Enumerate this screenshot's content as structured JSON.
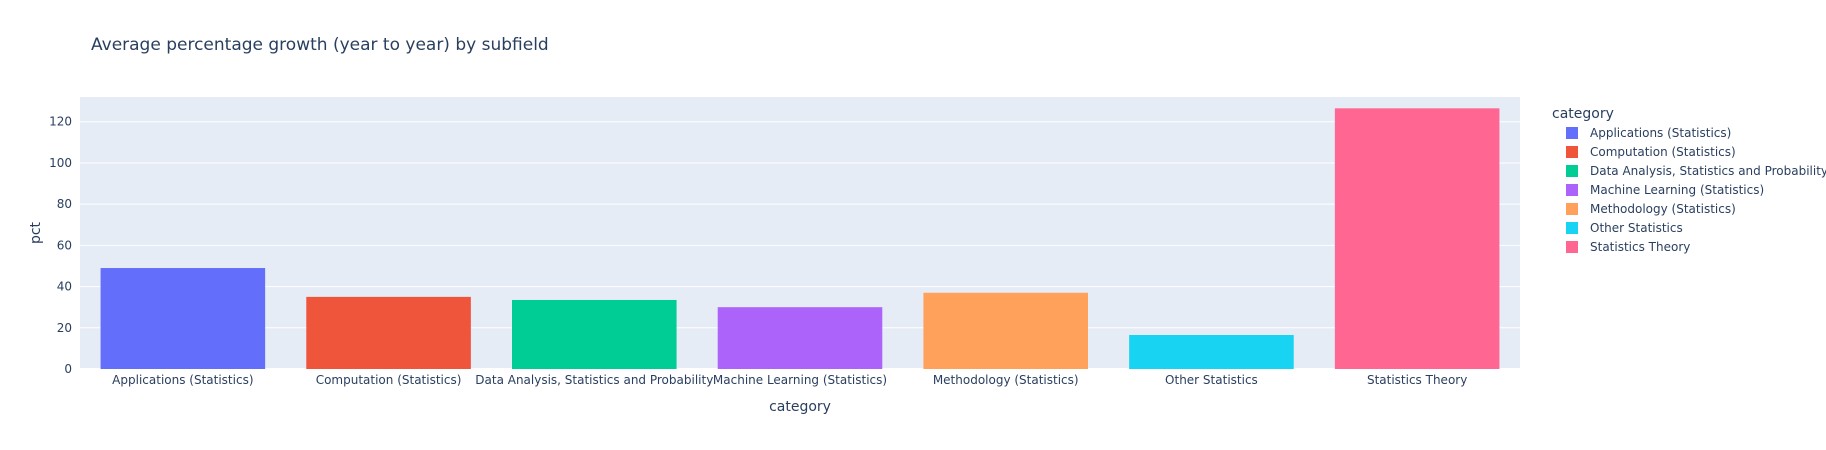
{
  "chart_data": {
    "type": "bar",
    "title": "Average percentage growth (year to year) by subfield",
    "xlabel": "category",
    "ylabel": "pct",
    "ylim": [
      0,
      132
    ],
    "yticks": [
      0,
      20,
      40,
      60,
      80,
      100,
      120
    ],
    "grid": true,
    "legend_title": "category",
    "legend_position": "right",
    "categories": [
      "Applications (Statistics)",
      "Computation (Statistics)",
      "Data Analysis, Statistics and Probability",
      "Machine Learning (Statistics)",
      "Methodology (Statistics)",
      "Other Statistics",
      "Statistics Theory"
    ],
    "values": [
      49,
      35,
      33.5,
      30,
      37,
      16.5,
      126.5
    ],
    "colors": [
      "#636efa",
      "#EF553B",
      "#00cc96",
      "#ab63fa",
      "#FFA15A",
      "#19d3f3",
      "#FF6692"
    ]
  }
}
